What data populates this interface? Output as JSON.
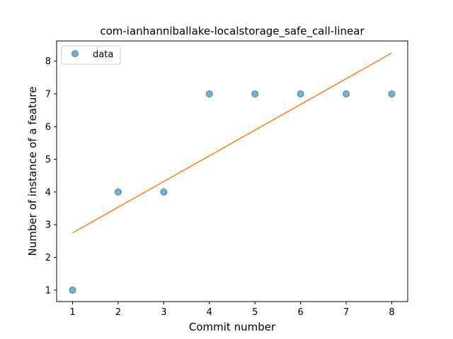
{
  "chart_data": {
    "type": "scatter",
    "title": "com-ianhanniballake-localstorage_safe_call-linear",
    "xlabel": "Commit number",
    "ylabel": "Number of instance of a feature",
    "xlim": [
      0.65,
      8.35
    ],
    "ylim": [
      0.65,
      8.62
    ],
    "xticks": [
      1,
      2,
      3,
      4,
      5,
      6,
      7,
      8
    ],
    "yticks": [
      1,
      2,
      3,
      4,
      5,
      6,
      7,
      8
    ],
    "grid": false,
    "legend_position": "top-left",
    "series": [
      {
        "name": "data",
        "kind": "scatter",
        "color": "#1f77b4",
        "x": [
          1,
          2,
          3,
          4,
          5,
          6,
          7,
          8
        ],
        "y": [
          1,
          4,
          4,
          7,
          7,
          7,
          7,
          7
        ]
      },
      {
        "kind": "line",
        "color": "#ff7f0e",
        "x": [
          1,
          8
        ],
        "y": [
          2.75,
          8.25
        ]
      }
    ]
  }
}
